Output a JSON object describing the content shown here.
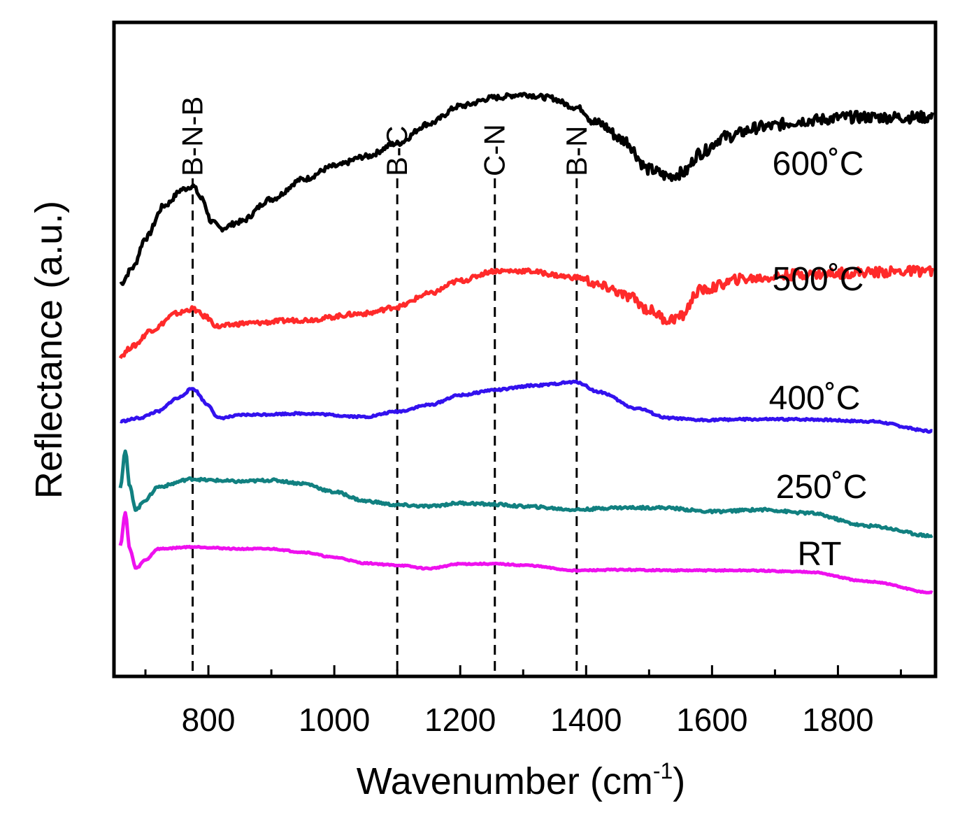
{
  "chart_data": {
    "type": "line",
    "title": "",
    "xlabel": "Wavenumber (cm",
    "xlabel_sup": "-1",
    "xlabel_end": ")",
    "ylabel": "Reflectance (a.u.)",
    "xlim": [
      650,
      1955
    ],
    "ylim": [
      0,
      10
    ],
    "x_ticks": [
      800,
      1000,
      1200,
      1400,
      1600,
      1800
    ],
    "y_ticks": [],
    "grid": false,
    "legend": "none",
    "reference_lines": [
      {
        "label": "B-N-B",
        "x": 775
      },
      {
        "label": "B-C",
        "x": 1100
      },
      {
        "label": "C-N",
        "x": 1255
      },
      {
        "label": "B-N",
        "x": 1385
      }
    ],
    "series": [
      {
        "name": "600˚C",
        "color": "#000000",
        "points": [
          [
            660,
            6.0
          ],
          [
            680,
            6.25
          ],
          [
            700,
            6.7
          ],
          [
            730,
            7.2
          ],
          [
            760,
            7.45
          ],
          [
            775,
            7.5
          ],
          [
            790,
            7.3
          ],
          [
            805,
            6.95
          ],
          [
            820,
            6.85
          ],
          [
            850,
            6.95
          ],
          [
            900,
            7.3
          ],
          [
            950,
            7.6
          ],
          [
            1000,
            7.8
          ],
          [
            1050,
            7.95
          ],
          [
            1100,
            8.15
          ],
          [
            1150,
            8.45
          ],
          [
            1200,
            8.72
          ],
          [
            1255,
            8.85
          ],
          [
            1300,
            8.9
          ],
          [
            1340,
            8.85
          ],
          [
            1385,
            8.7
          ],
          [
            1420,
            8.45
          ],
          [
            1460,
            8.2
          ],
          [
            1500,
            7.75
          ],
          [
            1530,
            7.65
          ],
          [
            1555,
            7.7
          ],
          [
            1580,
            8.0
          ],
          [
            1620,
            8.25
          ],
          [
            1680,
            8.4
          ],
          [
            1750,
            8.5
          ],
          [
            1820,
            8.55
          ],
          [
            1880,
            8.55
          ],
          [
            1950,
            8.55
          ]
        ]
      },
      {
        "name": "500˚C",
        "color": "#ff2a2a",
        "points": [
          [
            660,
            4.9
          ],
          [
            680,
            5.05
          ],
          [
            710,
            5.3
          ],
          [
            750,
            5.55
          ],
          [
            775,
            5.62
          ],
          [
            795,
            5.5
          ],
          [
            815,
            5.35
          ],
          [
            860,
            5.4
          ],
          [
            950,
            5.45
          ],
          [
            1050,
            5.55
          ],
          [
            1100,
            5.65
          ],
          [
            1150,
            5.85
          ],
          [
            1200,
            6.05
          ],
          [
            1255,
            6.2
          ],
          [
            1300,
            6.2
          ],
          [
            1385,
            6.1
          ],
          [
            1430,
            5.95
          ],
          [
            1470,
            5.8
          ],
          [
            1500,
            5.6
          ],
          [
            1530,
            5.45
          ],
          [
            1550,
            5.5
          ],
          [
            1580,
            5.9
          ],
          [
            1650,
            6.08
          ],
          [
            1750,
            6.15
          ],
          [
            1850,
            6.18
          ],
          [
            1950,
            6.2
          ]
        ]
      },
      {
        "name": "400˚C",
        "color": "#3311ee",
        "points": [
          [
            660,
            3.9
          ],
          [
            690,
            3.95
          ],
          [
            720,
            4.05
          ],
          [
            750,
            4.25
          ],
          [
            775,
            4.4
          ],
          [
            800,
            4.15
          ],
          [
            815,
            3.95
          ],
          [
            860,
            4.0
          ],
          [
            950,
            4.02
          ],
          [
            1050,
            3.97
          ],
          [
            1100,
            4.05
          ],
          [
            1150,
            4.15
          ],
          [
            1200,
            4.3
          ],
          [
            1255,
            4.38
          ],
          [
            1320,
            4.45
          ],
          [
            1385,
            4.5
          ],
          [
            1420,
            4.35
          ],
          [
            1480,
            4.1
          ],
          [
            1530,
            3.95
          ],
          [
            1580,
            3.92
          ],
          [
            1650,
            3.93
          ],
          [
            1750,
            3.93
          ],
          [
            1850,
            3.9
          ],
          [
            1950,
            3.75
          ]
        ]
      },
      {
        "name": "250˚C",
        "color": "#118080",
        "points": [
          [
            660,
            2.9
          ],
          [
            668,
            3.45
          ],
          [
            675,
            2.9
          ],
          [
            685,
            2.55
          ],
          [
            700,
            2.7
          ],
          [
            720,
            2.9
          ],
          [
            775,
            3.02
          ],
          [
            800,
            3.0
          ],
          [
            850,
            2.98
          ],
          [
            900,
            3.0
          ],
          [
            950,
            2.95
          ],
          [
            1000,
            2.82
          ],
          [
            1050,
            2.68
          ],
          [
            1100,
            2.62
          ],
          [
            1150,
            2.6
          ],
          [
            1200,
            2.65
          ],
          [
            1255,
            2.63
          ],
          [
            1300,
            2.6
          ],
          [
            1385,
            2.55
          ],
          [
            1450,
            2.58
          ],
          [
            1520,
            2.58
          ],
          [
            1600,
            2.52
          ],
          [
            1680,
            2.55
          ],
          [
            1750,
            2.5
          ],
          [
            1850,
            2.3
          ],
          [
            1950,
            2.15
          ]
        ]
      },
      {
        "name": "RT",
        "color": "#ee11ee",
        "points": [
          [
            660,
            2.0
          ],
          [
            668,
            2.5
          ],
          [
            675,
            1.95
          ],
          [
            685,
            1.65
          ],
          [
            700,
            1.78
          ],
          [
            720,
            1.95
          ],
          [
            775,
            1.98
          ],
          [
            850,
            1.95
          ],
          [
            900,
            1.95
          ],
          [
            950,
            1.9
          ],
          [
            1000,
            1.82
          ],
          [
            1050,
            1.73
          ],
          [
            1100,
            1.7
          ],
          [
            1150,
            1.65
          ],
          [
            1200,
            1.72
          ],
          [
            1255,
            1.72
          ],
          [
            1300,
            1.7
          ],
          [
            1385,
            1.62
          ],
          [
            1450,
            1.63
          ],
          [
            1550,
            1.62
          ],
          [
            1650,
            1.62
          ],
          [
            1750,
            1.6
          ],
          [
            1850,
            1.45
          ],
          [
            1950,
            1.28
          ]
        ]
      }
    ]
  }
}
